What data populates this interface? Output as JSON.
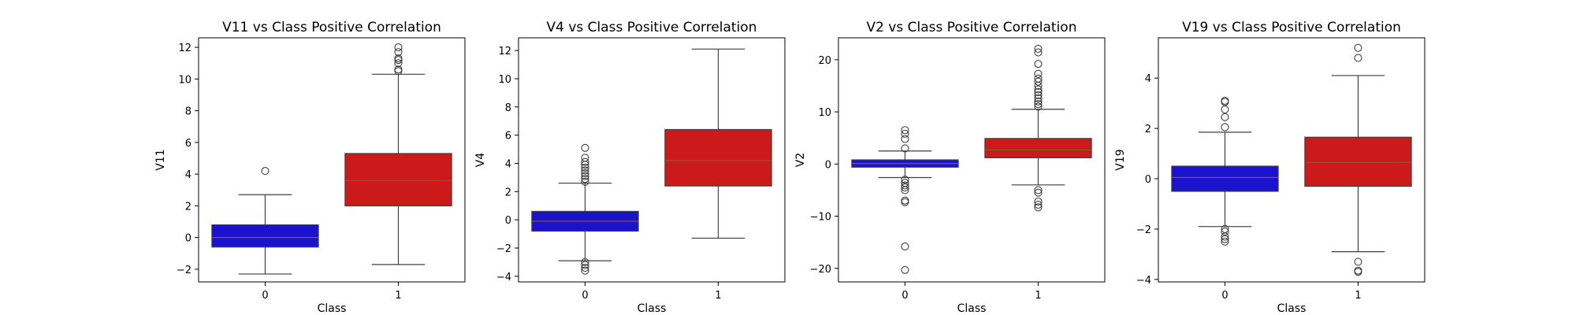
{
  "chart_data": [
    {
      "type": "box",
      "title": "V11 vs Class Positive Correlation",
      "xlabel": "Class",
      "ylabel": "V11",
      "categories": [
        "0",
        "1"
      ],
      "ylim": [
        -2.8,
        12.6
      ],
      "yticks": [
        -2,
        0,
        2,
        4,
        6,
        8,
        10,
        12
      ],
      "colors": [
        "#1a12cc",
        "#cc1a1a"
      ],
      "boxes": [
        {
          "category": "0",
          "whisker_low": -2.3,
          "q1": -0.6,
          "median": 0.0,
          "q3": 0.8,
          "whisker_high": 2.7,
          "outliers": [
            4.2
          ]
        },
        {
          "category": "1",
          "whisker_low": -1.7,
          "q1": 2.0,
          "median": 3.6,
          "q3": 5.3,
          "whisker_high": 10.3,
          "outliers": [
            10.5,
            10.6,
            11.0,
            11.2,
            11.3,
            11.7,
            12.0
          ]
        }
      ]
    },
    {
      "type": "box",
      "title": "V4 vs Class Positive Correlation",
      "xlabel": "Class",
      "ylabel": "V4",
      "categories": [
        "0",
        "1"
      ],
      "ylim": [
        -4.4,
        12.9
      ],
      "yticks": [
        -4,
        -2,
        0,
        2,
        4,
        6,
        8,
        10,
        12
      ],
      "colors": [
        "#1a12cc",
        "#cc1a1a"
      ],
      "boxes": [
        {
          "category": "0",
          "whisker_low": -2.9,
          "q1": -0.8,
          "median": -0.1,
          "q3": 0.6,
          "whisker_high": 2.6,
          "outliers": [
            -3.0,
            -3.2,
            -3.4,
            -3.6,
            2.7,
            2.9,
            3.1,
            3.3,
            3.5,
            3.7,
            3.9,
            4.1,
            4.4,
            5.1
          ]
        },
        {
          "category": "1",
          "whisker_low": -1.3,
          "q1": 2.4,
          "median": 4.2,
          "q3": 6.4,
          "whisker_high": 12.1,
          "outliers": []
        }
      ]
    },
    {
      "type": "box",
      "title": "V2 vs Class Positive Correlation",
      "xlabel": "Class",
      "ylabel": "V2",
      "categories": [
        "0",
        "1"
      ],
      "ylim": [
        -22.6,
        24.2
      ],
      "yticks": [
        -20,
        -10,
        0,
        10,
        20
      ],
      "colors": [
        "#1a12cc",
        "#cc1a1a"
      ],
      "boxes": [
        {
          "category": "0",
          "whisker_low": -2.6,
          "q1": -0.6,
          "median": 0.1,
          "q3": 0.8,
          "whisker_high": 2.5,
          "outliers": [
            -3.0,
            -3.6,
            -4.1,
            -4.5,
            -5.0,
            -7.0,
            -7.3,
            -15.8,
            -20.3,
            3.0,
            4.8,
            5.8,
            6.5
          ]
        },
        {
          "category": "1",
          "whisker_low": -4.0,
          "q1": 1.2,
          "median": 2.7,
          "q3": 4.9,
          "whisker_high": 10.5,
          "outliers": [
            -5.0,
            -5.5,
            -7.2,
            -7.8,
            -8.3,
            11.0,
            11.5,
            12.0,
            12.6,
            13.2,
            13.8,
            14.3,
            15.0,
            15.8,
            16.4,
            17.3,
            19.2,
            21.4,
            22.1
          ]
        }
      ]
    },
    {
      "type": "box",
      "title": "V19 vs Class Positive Correlation",
      "xlabel": "Class",
      "ylabel": "V19",
      "categories": [
        "0",
        "1"
      ],
      "ylim": [
        -4.1,
        5.6
      ],
      "yticks": [
        -4,
        -2,
        0,
        2,
        4
      ],
      "colors": [
        "#1a12cc",
        "#cc1a1a"
      ],
      "boxes": [
        {
          "category": "0",
          "whisker_low": -1.9,
          "q1": -0.5,
          "median": 0.05,
          "q3": 0.5,
          "whisker_high": 1.85,
          "outliers": [
            -2.0,
            -2.1,
            -2.3,
            -2.4,
            -2.5,
            2.05,
            2.45,
            2.75,
            3.05,
            3.1
          ]
        },
        {
          "category": "1",
          "whisker_low": -2.9,
          "q1": -0.3,
          "median": 0.65,
          "q3": 1.65,
          "whisker_high": 4.1,
          "outliers": [
            -3.3,
            -3.65,
            -3.7,
            4.8,
            5.2
          ]
        }
      ]
    }
  ]
}
